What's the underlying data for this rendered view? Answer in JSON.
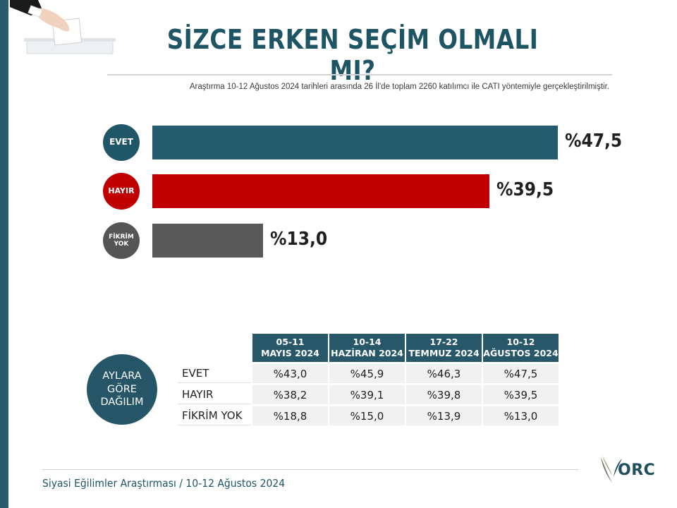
{
  "header": {
    "title": "SİZCE ERKEN SEÇİM OLMALI MI?",
    "subtitle": "Araştırma 10-12 Ağustos 2024 tarihleri arasında 26 İl'de toplam 2260 katılımcı ile CATI yöntemiyle gerçekleştirilmiştir."
  },
  "colors": {
    "primary": "#1f5668",
    "evet": "#255c6d",
    "hayir": "#c00000",
    "fikrim_yok": "#595959"
  },
  "chart_data": {
    "type": "bar",
    "orientation": "horizontal",
    "categories": [
      "EVET",
      "HAYIR",
      "FİKRİM YOK"
    ],
    "values": [
      47.5,
      39.5,
      13.0
    ],
    "value_labels": [
      "%47,5",
      "%39,5",
      "%13,0"
    ],
    "colors": [
      "#255c6d",
      "#c00000",
      "#595959"
    ],
    "title": "SİZCE ERKEN SEÇİM OLMALI MI?",
    "xlim": [
      0,
      47.5
    ]
  },
  "table": {
    "side_label": [
      "AYLARA",
      "GÖRE",
      "DAĞILIM"
    ],
    "headers": [
      [
        "05-11",
        "MAYIS 2024"
      ],
      [
        "10-14",
        "HAZİRAN 2024"
      ],
      [
        "17-22",
        "TEMMUZ 2024"
      ],
      [
        "10-12",
        "AĞUSTOS 2024"
      ]
    ],
    "rows": [
      {
        "label": "EVET",
        "values": [
          "%43,0",
          "%45,9",
          "%46,3",
          "%47,5"
        ]
      },
      {
        "label": "HAYIR",
        "values": [
          "%38,2",
          "%39,1",
          "%39,8",
          "%39,5"
        ]
      },
      {
        "label": "FİKRİM YOK",
        "values": [
          "%18,8",
          "%15,0",
          "%13,9",
          "%13,0"
        ]
      }
    ]
  },
  "footer": {
    "text": "Siyasi Eğilimler Araştırması / 10-12 Ağustos 2024",
    "logo_text": "ORC"
  }
}
